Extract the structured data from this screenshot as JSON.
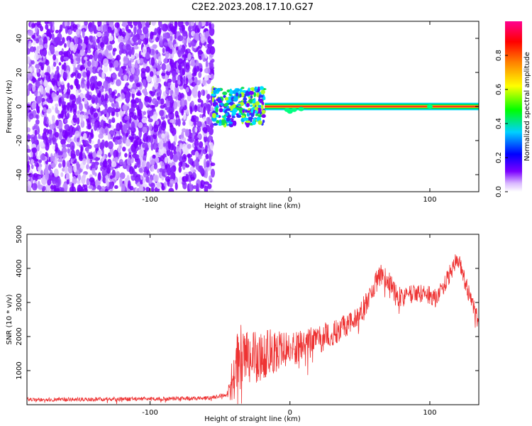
{
  "page": {
    "title": "C2E2.2023.208.17.10.G27"
  },
  "chart_data": [
    {
      "type": "heatmap",
      "xlabel": "Height of straight line (km)",
      "ylabel": "Frequency (Hz)",
      "xlim": [
        -188,
        135
      ],
      "ylim": [
        -50,
        50
      ],
      "xticks": [
        -100,
        0,
        100
      ],
      "yticks": [
        -40,
        -20,
        0,
        20,
        40
      ],
      "grid": false,
      "colorbar": {
        "label": "Normalized spectral amplitude",
        "range": [
          0,
          1
        ],
        "ticks": [
          0.0,
          0.2,
          0.4,
          0.6,
          0.8
        ],
        "colors": [
          "#ffffff",
          "#7b00ff",
          "#0000ff",
          "#00d0ff",
          "#00ff00",
          "#ffff00",
          "#ff8000",
          "#ff0000",
          "#ff0090"
        ]
      },
      "description_regions": [
        {
          "x_range": [
            -188,
            -55
          ],
          "frequency_range": [
            -50,
            50
          ],
          "amplitude": "low (0.0-0.1), noise"
        },
        {
          "x_range": [
            -55,
            -18
          ],
          "frequency_range": [
            -10,
            12
          ],
          "amplitude": "0.1-0.5 scattered"
        },
        {
          "x_range": [
            -18,
            135
          ],
          "frequency_range": [
            -2,
            2
          ],
          "amplitude": "0.8-1.0 centered at 0 Hz"
        }
      ]
    },
    {
      "type": "line",
      "xlabel": "Height of straight line (km)",
      "ylabel": "SNR (10 * v/v)",
      "xlim": [
        -188,
        135
      ],
      "ylim": [
        0,
        5000
      ],
      "xticks": [
        -100,
        0,
        100
      ],
      "yticks": [
        1000,
        2000,
        3000,
        4000,
        5000
      ],
      "grid": false,
      "color": "#ee3333",
      "envelope": {
        "x": [
          -188,
          -150,
          -100,
          -60,
          -45,
          -40,
          -36,
          -30,
          -20,
          -10,
          0,
          20,
          40,
          50,
          55,
          60,
          65,
          70,
          75,
          80,
          90,
          100,
          105,
          110,
          115,
          120,
          123,
          126,
          130,
          135
        ],
        "y": [
          150,
          160,
          170,
          190,
          300,
          800,
          1500,
          1400,
          1500,
          1600,
          1600,
          1900,
          2300,
          2700,
          3000,
          3500,
          3800,
          3700,
          3300,
          3100,
          3300,
          3200,
          3100,
          3500,
          3900,
          4300,
          4000,
          3500,
          3000,
          2400
        ]
      },
      "noise_amplitude": {
        "x": [
          -188,
          -45,
          -40,
          -20,
          0,
          40,
          80,
          135
        ],
        "y": [
          60,
          60,
          900,
          800,
          500,
          350,
          300,
          250
        ]
      }
    }
  ]
}
